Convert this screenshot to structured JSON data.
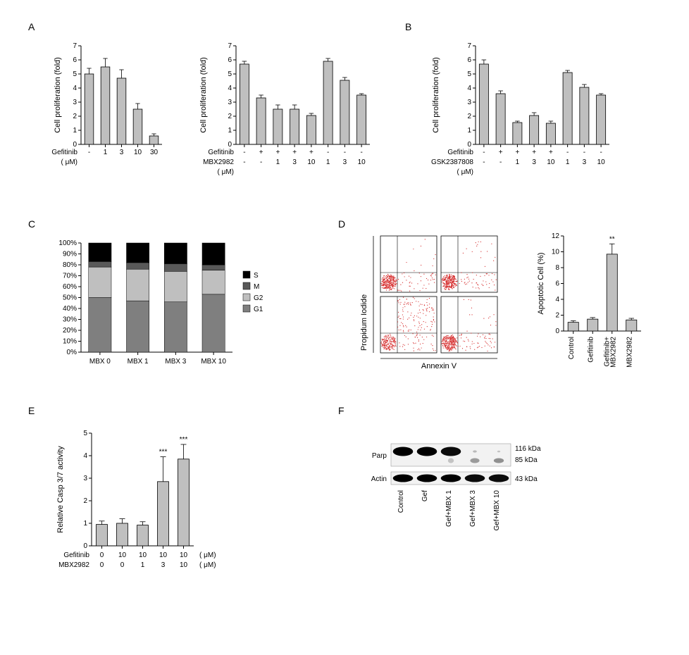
{
  "colors": {
    "bar_fill": "#bfbfbf",
    "bar_stroke": "#000000",
    "axis": "#000000",
    "stack_S": "#000000",
    "stack_M": "#595959",
    "stack_G2": "#bfbfbf",
    "stack_G1": "#7f7f7f",
    "text": "#000000",
    "blot_dark": "#1a1a1a",
    "blot_bg": "#f2f2f2",
    "scatter": "#d62f2f"
  },
  "panelA": {
    "label": "A",
    "left": {
      "ylabel": "Cell proliferation (fold)",
      "ylim": [
        0,
        7
      ],
      "ytick": 1,
      "categories": [
        "-",
        "1",
        "3",
        "10",
        "30"
      ],
      "row_labels": [
        "Gefitinib"
      ],
      "unit_label": "( μM)",
      "values": [
        5.0,
        5.5,
        4.7,
        2.5,
        0.6
      ],
      "errors": [
        0.4,
        0.6,
        0.6,
        0.4,
        0.15
      ]
    },
    "right": {
      "ylabel": "Cell proliferation (fold)",
      "ylim": [
        0,
        7
      ],
      "ytick": 1,
      "row_labels": [
        "Gefitinib",
        "MBX2982"
      ],
      "unit_label": "( μM)",
      "rows": [
        [
          "-",
          "+",
          "+",
          "+",
          "+",
          "-",
          "-",
          "-"
        ],
        [
          "-",
          "-",
          "1",
          "3",
          "10",
          "1",
          "3",
          "10"
        ]
      ],
      "values": [
        5.7,
        3.3,
        2.5,
        2.5,
        2.05,
        5.9,
        4.55,
        3.5
      ],
      "errors": [
        0.2,
        0.2,
        0.3,
        0.3,
        0.15,
        0.2,
        0.2,
        0.1
      ]
    }
  },
  "panelB": {
    "label": "B",
    "ylabel": "Cell proliferation (fold)",
    "ylim": [
      0,
      7
    ],
    "ytick": 1,
    "row_labels": [
      "Gefitinib",
      "GSK2387808"
    ],
    "unit_label": "( μM)",
    "rows": [
      [
        "-",
        "+",
        "+",
        "+",
        "+",
        "-",
        "-",
        "-"
      ],
      [
        "-",
        "-",
        "1",
        "3",
        "10",
        "1",
        "3",
        "10"
      ]
    ],
    "values": [
      5.7,
      3.6,
      1.55,
      2.05,
      1.5,
      5.1,
      4.05,
      3.5
    ],
    "errors": [
      0.3,
      0.2,
      0.1,
      0.2,
      0.15,
      0.15,
      0.2,
      0.1
    ]
  },
  "panelC": {
    "label": "C",
    "ylabel_suffix": "%",
    "ylim": [
      0,
      100
    ],
    "ytick": 10,
    "categories": [
      "MBX 0",
      "MBX 1",
      "MBX 3",
      "MBX 10"
    ],
    "legend": [
      "S",
      "M",
      "G2",
      "G1"
    ],
    "series": {
      "G1": [
        50,
        47,
        46,
        53
      ],
      "G2": [
        28,
        29,
        28,
        22
      ],
      "M": [
        5,
        6,
        7,
        5
      ],
      "S": [
        17,
        18,
        19,
        20
      ]
    }
  },
  "panelD": {
    "label": "D",
    "scatter_xlabel": "Annexin V",
    "scatter_ylabel": "Propidum Iodide",
    "bar": {
      "ylabel": "Apoptotic Cell (%)",
      "ylim": [
        0,
        12
      ],
      "ytick": 2,
      "categories": [
        "Control",
        "Gefitinib",
        "Gefitinib+\nMBX2982",
        "MBX2982"
      ],
      "values": [
        1.1,
        1.5,
        9.7,
        1.4
      ],
      "errors": [
        0.2,
        0.2,
        1.3,
        0.2
      ],
      "sig": [
        "",
        "",
        "**",
        ""
      ]
    }
  },
  "panelE": {
    "label": "E",
    "ylabel": "Relative Casp 3/7 activity",
    "ylim": [
      0,
      5
    ],
    "ytick": 1,
    "row_labels": [
      "Gefitinib",
      "MBX2982"
    ],
    "unit_label": "( μM)",
    "rows": [
      [
        "0",
        "10",
        "10",
        "10",
        "10"
      ],
      [
        "0",
        "0",
        "1",
        "3",
        "10"
      ]
    ],
    "values": [
      0.95,
      1.0,
      0.92,
      2.85,
      3.85
    ],
    "errors": [
      0.15,
      0.2,
      0.15,
      1.1,
      0.65
    ],
    "sig": [
      "",
      "",
      "",
      "***",
      "***"
    ]
  },
  "panelF": {
    "label": "F",
    "row1_label": "Parp",
    "row2_label": "Actin",
    "size_labels": [
      "116 kDa",
      "85 kDa",
      "43 kDa"
    ],
    "lanes": [
      "Control",
      "Gef",
      "Gef+MBX 1",
      "Gef+MBX 3",
      "Gef+MBX 10"
    ],
    "parp_full": [
      1.0,
      1.0,
      0.95,
      0.1,
      0.05
    ],
    "parp_cleaved": [
      0,
      0,
      0.05,
      0.25,
      0.3
    ],
    "actin": [
      1.0,
      1.0,
      1.0,
      0.95,
      0.95
    ]
  }
}
